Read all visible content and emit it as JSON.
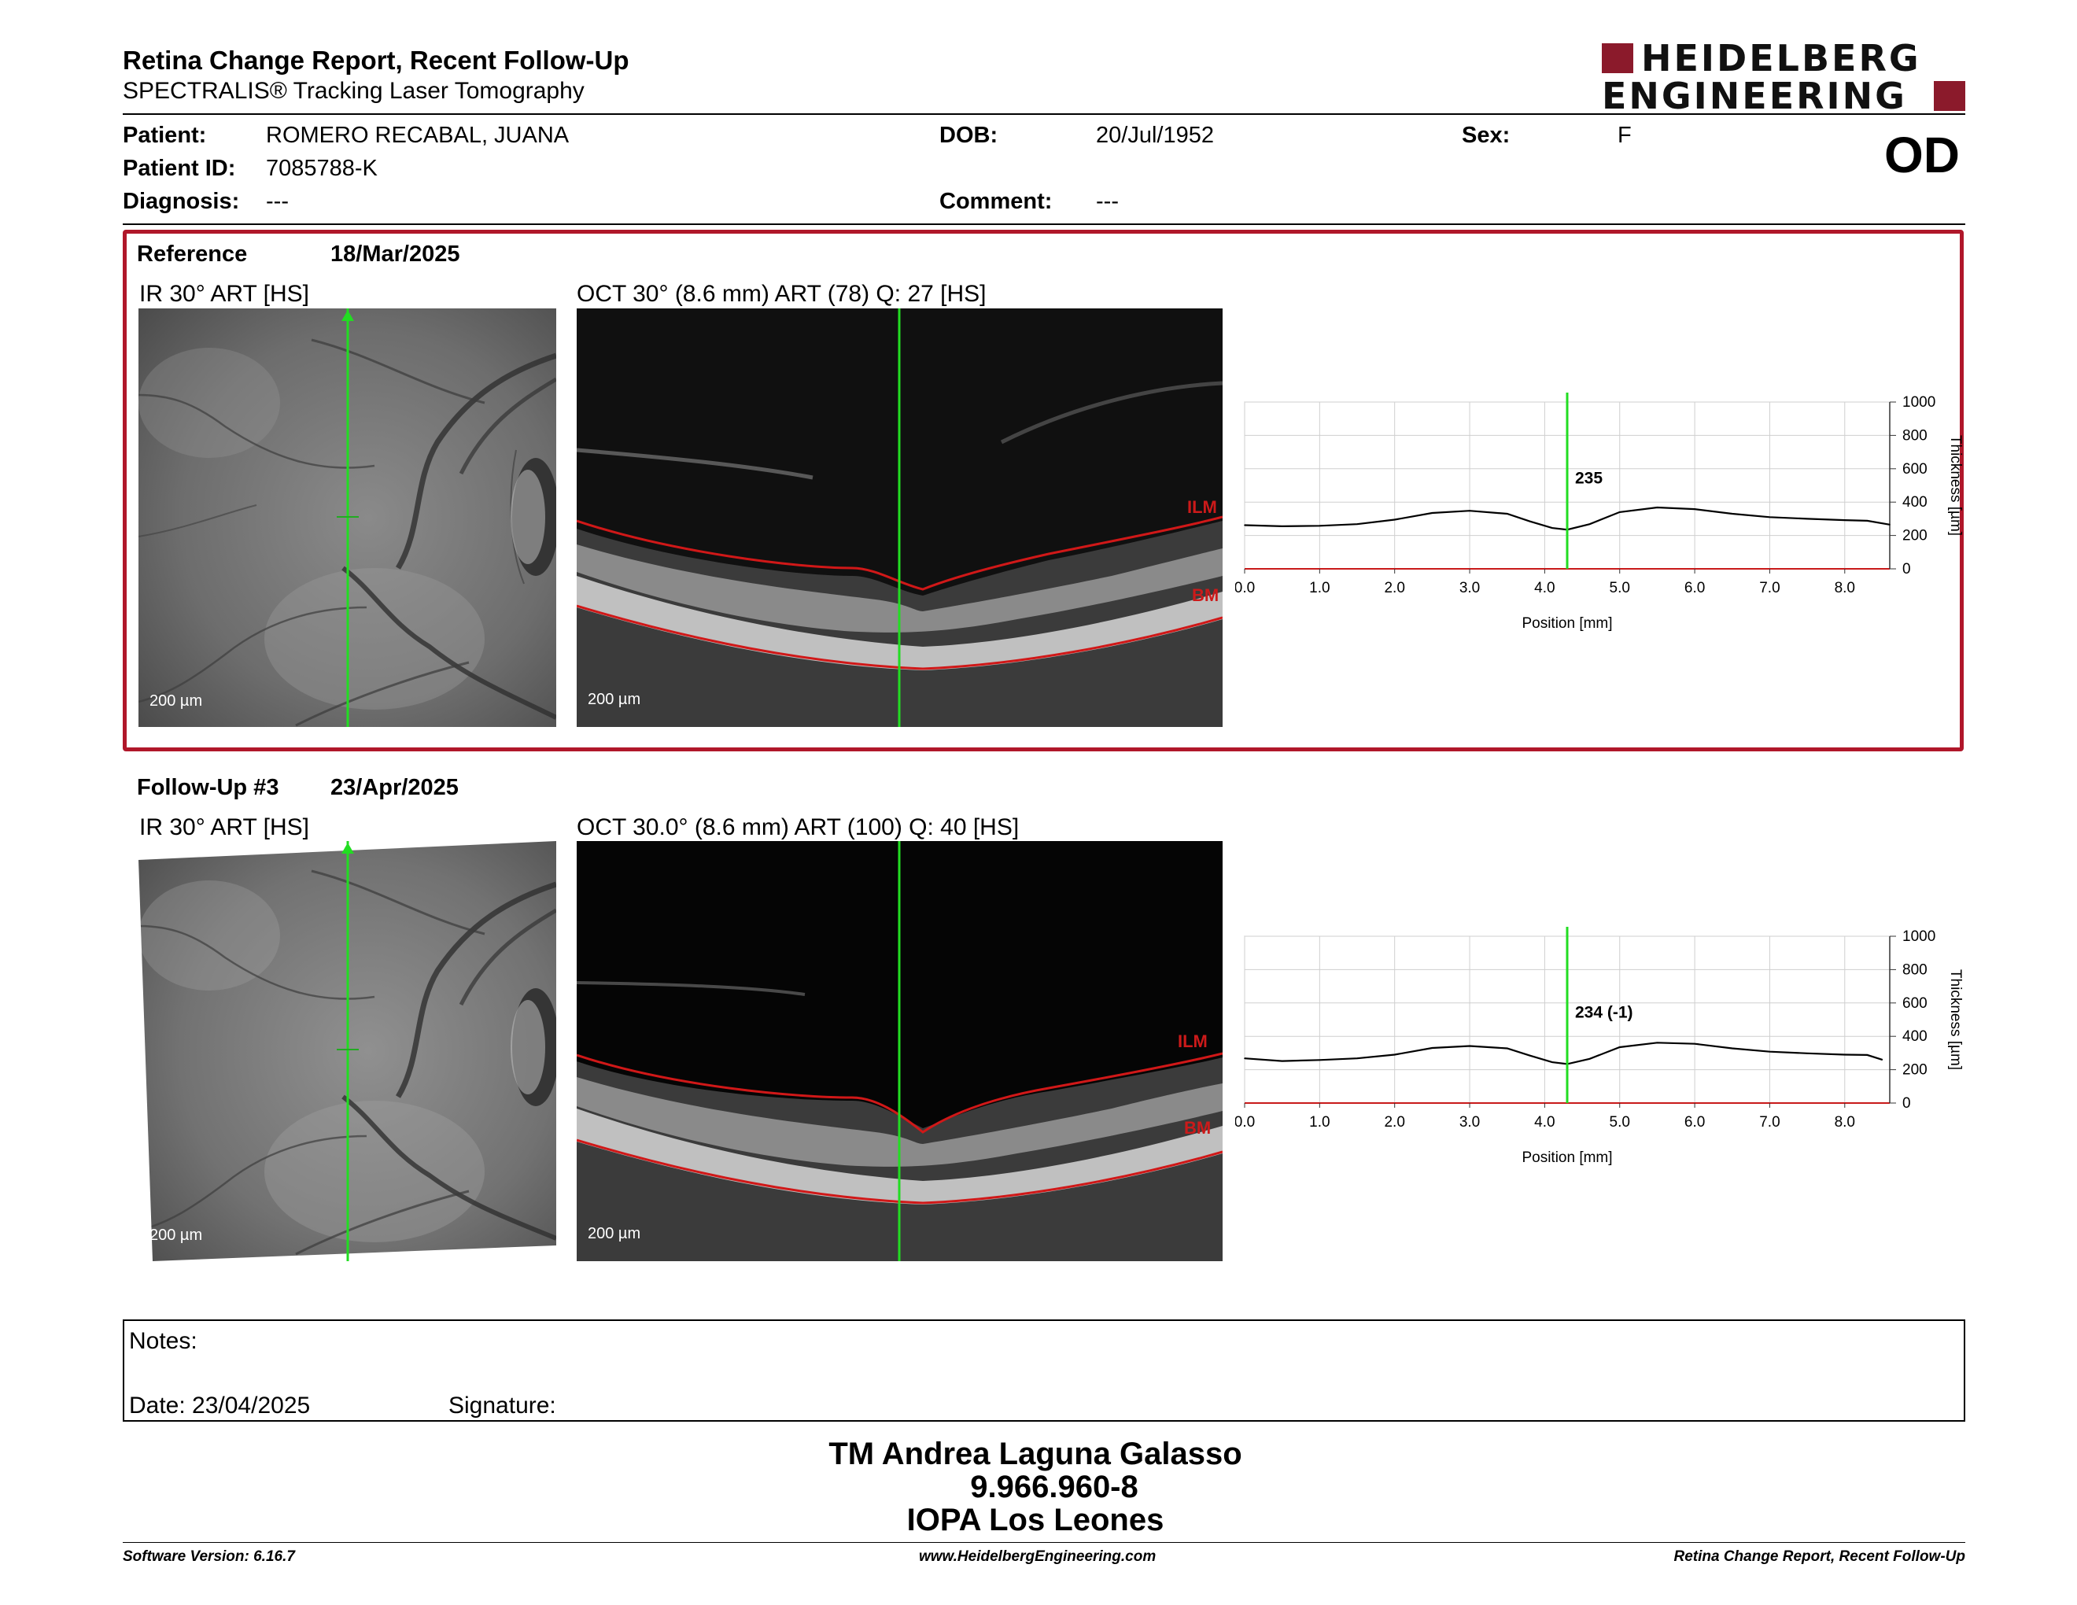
{
  "header": {
    "title": "Retina Change Report, Recent Follow-Up",
    "subtitle": "SPECTRALIS® Tracking Laser Tomography",
    "logo_line1": "HEIDELBERG",
    "logo_line2": "ENGINEERING",
    "eye": "OD",
    "brand_color": "#8b1a2b"
  },
  "patient": {
    "name_label": "Patient:",
    "name": "ROMERO RECABAL, JUANA",
    "id_label": "Patient ID:",
    "id": "7085788-K",
    "diagnosis_label": "Diagnosis:",
    "diagnosis": "---",
    "dob_label": "DOB:",
    "dob": "20/Jul/1952",
    "comment_label": "Comment:",
    "comment": "---",
    "sex_label": "Sex:",
    "sex": "F"
  },
  "reference": {
    "label": "Reference",
    "date": "18/Mar/2025",
    "ir_title": "IR 30° ART [HS]",
    "oct_title": "OCT 30° (8.6 mm) ART (78) Q: 27 [HS]",
    "ir_scale": "200 µm",
    "oct_scale": "200 µm",
    "ilm": "ILM",
    "bm": "BM",
    "box_color": "#b0172a"
  },
  "followup": {
    "label": "Follow-Up #3",
    "date": "23/Apr/2025",
    "ir_title": "IR 30° ART [HS]",
    "oct_title": "OCT 30.0° (8.6 mm) ART (100) Q: 40 [HS]",
    "ir_scale": "200 µm",
    "oct_scale": "200 µm",
    "ilm": "ILM",
    "bm": "BM"
  },
  "chart_data": [
    {
      "type": "line",
      "xlabel": "Position [mm]",
      "ylabel": "Thickness [µm]",
      "xlim": [
        0,
        8.6
      ],
      "ylim": [
        0,
        1000
      ],
      "x_ticks": [
        "0.0",
        "1.0",
        "2.0",
        "3.0",
        "4.0",
        "5.0",
        "6.0",
        "7.0",
        "8.0"
      ],
      "y_ticks": [
        "1000",
        "800",
        "600",
        "400",
        "200",
        "0"
      ],
      "grid": true,
      "marker_x": 4.3,
      "marker_label": "235",
      "series": [
        {
          "x": [
            0.0,
            0.5,
            1.0,
            1.5,
            2.0,
            2.5,
            3.0,
            3.5,
            3.8,
            4.1,
            4.3,
            4.6,
            5.0,
            5.5,
            6.0,
            6.5,
            7.0,
            7.5,
            8.0,
            8.3,
            8.6
          ],
          "values": [
            262,
            255,
            258,
            268,
            295,
            335,
            348,
            330,
            285,
            245,
            235,
            268,
            340,
            368,
            358,
            330,
            310,
            300,
            292,
            288,
            265
          ]
        }
      ]
    },
    {
      "type": "line",
      "xlabel": "Position [mm]",
      "ylabel": "Thickness [µm]",
      "xlim": [
        0,
        8.6
      ],
      "ylim": [
        0,
        1000
      ],
      "x_ticks": [
        "0.0",
        "1.0",
        "2.0",
        "3.0",
        "4.0",
        "5.0",
        "6.0",
        "7.0",
        "8.0"
      ],
      "y_ticks": [
        "1000",
        "800",
        "600",
        "400",
        "200",
        "0"
      ],
      "grid": true,
      "marker_x": 4.3,
      "marker_label": "234 (-1)",
      "series": [
        {
          "x": [
            0.0,
            0.5,
            1.0,
            1.5,
            2.0,
            2.5,
            3.0,
            3.5,
            3.8,
            4.1,
            4.3,
            4.6,
            5.0,
            5.5,
            6.0,
            6.5,
            7.0,
            7.5,
            8.0,
            8.3,
            8.5
          ],
          "values": [
            268,
            252,
            258,
            268,
            290,
            330,
            342,
            328,
            285,
            245,
            234,
            265,
            335,
            362,
            355,
            328,
            308,
            298,
            290,
            288,
            260
          ]
        }
      ]
    }
  ],
  "notes": {
    "label": "Notes:",
    "date": "Date: 23/04/2025",
    "signature": "Signature:"
  },
  "signatory": {
    "name": "TM Andrea Laguna Galasso",
    "id": "9.966.960-8",
    "org": "IOPA Los Leones"
  },
  "footer": {
    "left": "Software Version: 6.16.7",
    "center": "www.HeidelbergEngineering.com",
    "right": "Retina Change Report, Recent Follow-Up"
  }
}
